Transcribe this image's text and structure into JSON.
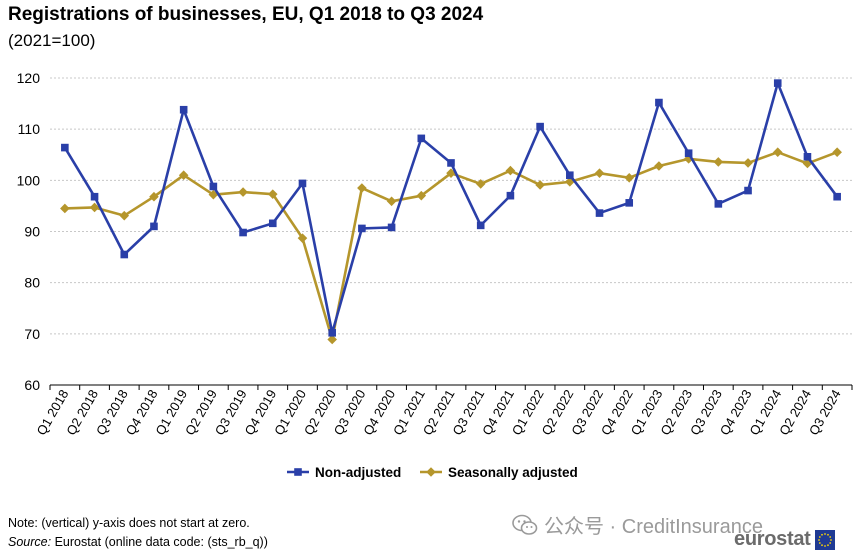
{
  "title": "Registrations of businesses, EU, Q1 2018 to Q3 2024",
  "subtitle": "(2021=100)",
  "note": "Note: (vertical) y-axis does not start at zero.",
  "source": {
    "label": "Source:",
    "text": "Eurostat (online data code: (sts_rb_q))"
  },
  "watermark": "公众号 · CreditInsurance",
  "logo": "eurostat",
  "chart_data": {
    "type": "line",
    "title": "Registrations of businesses, EU, Q1 2018 to Q3 2024",
    "subtitle": "(2021=100)",
    "xlabel": "",
    "ylabel": "",
    "ylim": [
      60,
      120
    ],
    "yticks": [
      60,
      70,
      80,
      90,
      100,
      110,
      120
    ],
    "grid": true,
    "legend_position": "bottom",
    "categories": [
      "Q1 2018",
      "Q2 2018",
      "Q3 2018",
      "Q4 2018",
      "Q1 2019",
      "Q2 2019",
      "Q3 2019",
      "Q4 2019",
      "Q1 2020",
      "Q2 2020",
      "Q3 2020",
      "Q4 2020",
      "Q1 2021",
      "Q2 2021",
      "Q3 2021",
      "Q4 2021",
      "Q1 2022",
      "Q2 2022",
      "Q3 2022",
      "Q4 2022",
      "Q1 2023",
      "Q2 2023",
      "Q3 2023",
      "Q4 2023",
      "Q1 2024",
      "Q2 2024",
      "Q3 2024"
    ],
    "series": [
      {
        "name": "Non-adjusted",
        "color": "#2a3fa8",
        "marker": "square",
        "values": [
          106.4,
          96.8,
          85.5,
          91.0,
          113.8,
          98.8,
          89.8,
          91.6,
          99.4,
          70.2,
          90.6,
          90.8,
          108.2,
          103.4,
          91.2,
          97.0,
          110.5,
          101.0,
          93.6,
          95.6,
          115.2,
          105.3,
          95.4,
          98.0,
          119.0,
          104.6,
          96.8
        ]
      },
      {
        "name": "Seasonally adjusted",
        "color": "#b5962c",
        "marker": "diamond",
        "values": [
          94.5,
          94.7,
          93.1,
          96.8,
          101.0,
          97.2,
          97.7,
          97.3,
          88.7,
          68.9,
          98.5,
          95.9,
          97.0,
          101.4,
          99.3,
          101.9,
          99.1,
          99.7,
          101.4,
          100.5,
          102.8,
          104.2,
          103.6,
          103.4,
          105.5,
          103.3,
          105.5
        ]
      }
    ]
  }
}
